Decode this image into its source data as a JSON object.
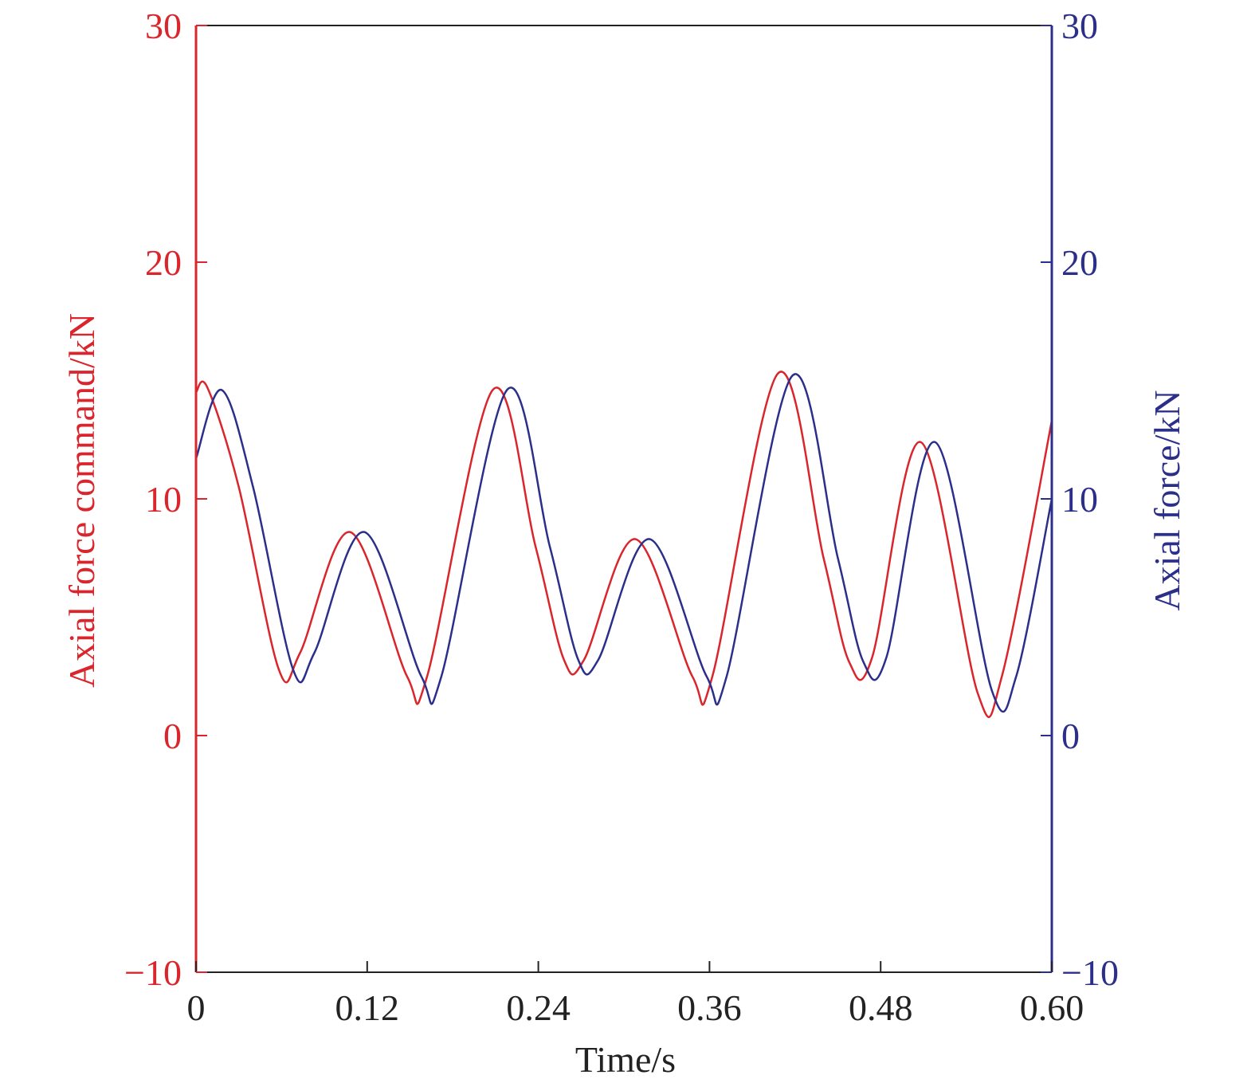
{
  "chart_data": {
    "type": "line",
    "title": "",
    "xlabel": "Time/s",
    "ylabel_left": "Axial force command/kN",
    "ylabel_right": "Axial force/kN",
    "xlim": [
      0,
      0.6
    ],
    "ylim_left": [
      -10,
      30
    ],
    "ylim_right": [
      -10,
      30
    ],
    "x_ticks": [
      0,
      0.12,
      0.24,
      0.36,
      0.48,
      0.6
    ],
    "x_tick_labels": [
      "0",
      "0.12",
      "0.24",
      "0.36",
      "0.48",
      "0.60"
    ],
    "y_ticks": [
      -10,
      0,
      10,
      20,
      30
    ],
    "y_tick_labels_left": [
      "−10",
      "0",
      "10",
      "20",
      "30"
    ],
    "y_tick_labels_right": [
      "−10",
      "0",
      "10",
      "20",
      "30"
    ],
    "grid": false,
    "colors": {
      "left": "#d9252b",
      "right": "#2b2f8a",
      "axis": "#222222"
    },
    "series": [
      {
        "axis": "left",
        "color": "#d9252b",
        "x": [
          0,
          0.008,
          0.03,
          0.058,
          0.073,
          0.108,
          0.148,
          0.162,
          0.208,
          0.238,
          0.258,
          0.272,
          0.308,
          0.348,
          0.362,
          0.408,
          0.44,
          0.458,
          0.474,
          0.508,
          0.548,
          0.565,
          0.6
        ],
        "y": [
          14.5,
          14.7,
          10.5,
          2.8,
          3.5,
          8.6,
          2.5,
          2.5,
          14.6,
          8.0,
          3.2,
          3.2,
          8.3,
          2.5,
          2.5,
          15.3,
          7.5,
          3.1,
          3.3,
          12.4,
          1.8,
          2.5,
          13.3
        ]
      },
      {
        "axis": "right",
        "color": "#2b2f8a",
        "x": [
          0,
          0.018,
          0.04,
          0.068,
          0.083,
          0.118,
          0.158,
          0.172,
          0.218,
          0.248,
          0.268,
          0.282,
          0.318,
          0.358,
          0.372,
          0.418,
          0.45,
          0.468,
          0.484,
          0.518,
          0.558,
          0.575,
          0.6
        ],
        "y": [
          11.7,
          14.6,
          10.5,
          2.8,
          3.5,
          8.6,
          2.5,
          2.5,
          14.6,
          8.0,
          3.2,
          3.2,
          8.3,
          2.5,
          2.5,
          15.2,
          7.5,
          3.1,
          3.3,
          12.4,
          1.9,
          2.5,
          10.0
        ]
      }
    ]
  }
}
